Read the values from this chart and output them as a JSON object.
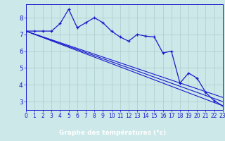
{
  "xlabel": "Graphe des températures (°c)",
  "bg_color": "#cce8e8",
  "plot_bg_color": "#cce8e8",
  "label_bar_color": "#2020a0",
  "line_color": "#1a1acd",
  "grid_color": "#aacccc",
  "x_ticks": [
    0,
    1,
    2,
    3,
    4,
    5,
    6,
    7,
    8,
    9,
    10,
    11,
    12,
    13,
    14,
    15,
    16,
    17,
    18,
    19,
    20,
    21,
    22,
    23
  ],
  "y_ticks": [
    3,
    4,
    5,
    6,
    7,
    8
  ],
  "xlim": [
    0,
    23
  ],
  "ylim": [
    2.5,
    8.8
  ],
  "main_x": [
    0,
    1,
    2,
    3,
    4,
    5,
    6,
    7,
    8,
    9,
    10,
    11,
    12,
    13,
    14,
    15,
    16,
    17,
    18,
    19,
    20,
    21,
    22,
    23
  ],
  "main_y": [
    7.2,
    7.2,
    7.2,
    7.2,
    7.65,
    8.5,
    7.4,
    7.7,
    8.0,
    7.7,
    7.2,
    6.85,
    6.6,
    7.0,
    6.9,
    6.85,
    5.9,
    6.0,
    4.1,
    4.7,
    4.4,
    3.55,
    3.05,
    2.75
  ],
  "reg_lines": [
    {
      "x": [
        0,
        23
      ],
      "y": [
        7.2,
        2.75
      ]
    },
    {
      "x": [
        0,
        23
      ],
      "y": [
        7.2,
        3.0
      ]
    },
    {
      "x": [
        0,
        23
      ],
      "y": [
        7.2,
        3.25
      ]
    }
  ],
  "xlabel_fontsize": 6.5,
  "tick_fontsize": 5.5,
  "ytick_fontsize": 6.5
}
